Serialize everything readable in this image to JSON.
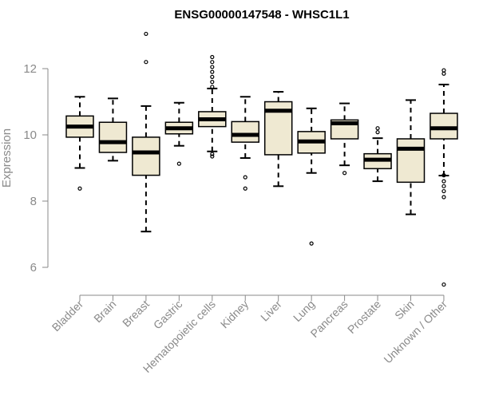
{
  "chart_data": {
    "type": "boxplot",
    "title": "ENSG00000147548 - WHSC1L1",
    "xlabel": "",
    "ylabel": "Expression",
    "ylim": [
      5.2,
      13.2
    ],
    "yticks": [
      6,
      8,
      10,
      12
    ],
    "grid": false,
    "box_color": "#efe9d2",
    "categories": [
      "Bladder",
      "Brain",
      "Breast",
      "Gastric",
      "Hematopoietic cells",
      "Kidney",
      "Liver",
      "Lung",
      "Pancreas",
      "Prostate",
      "Skin",
      "Unknown / Other"
    ],
    "boxes": [
      {
        "name": "Bladder",
        "whisker_low": 9.0,
        "q1": 9.93,
        "median": 10.25,
        "q3": 10.57,
        "whisker_high": 11.15,
        "outliers": [
          8.38
        ]
      },
      {
        "name": "Brain",
        "whisker_low": 9.22,
        "q1": 9.47,
        "median": 9.78,
        "q3": 10.38,
        "whisker_high": 11.1,
        "outliers": []
      },
      {
        "name": "Breast",
        "whisker_low": 7.08,
        "q1": 8.78,
        "median": 9.47,
        "q3": 9.93,
        "whisker_high": 10.87,
        "outliers": [
          12.2,
          13.05
        ]
      },
      {
        "name": "Gastric",
        "whisker_low": 9.67,
        "q1": 10.03,
        "median": 10.2,
        "q3": 10.38,
        "whisker_high": 10.97,
        "outliers": [
          9.13
        ]
      },
      {
        "name": "Hematopoietic cells",
        "whisker_low": 9.5,
        "q1": 10.25,
        "median": 10.47,
        "q3": 10.7,
        "whisker_high": 11.4,
        "outliers": [
          9.35,
          9.42,
          11.45,
          11.6,
          11.75,
          11.9,
          12.05,
          12.2,
          12.35
        ]
      },
      {
        "name": "Kidney",
        "whisker_low": 9.3,
        "q1": 9.78,
        "median": 10.0,
        "q3": 10.4,
        "whisker_high": 11.15,
        "outliers": [
          8.72,
          8.38
        ]
      },
      {
        "name": "Liver",
        "whisker_low": 8.45,
        "q1": 9.4,
        "median": 10.73,
        "q3": 11.0,
        "whisker_high": 11.3,
        "outliers": []
      },
      {
        "name": "Lung",
        "whisker_low": 8.85,
        "q1": 9.45,
        "median": 9.8,
        "q3": 10.1,
        "whisker_high": 10.8,
        "outliers": [
          6.72
        ]
      },
      {
        "name": "Pancreas",
        "whisker_low": 9.08,
        "q1": 9.88,
        "median": 10.35,
        "q3": 10.45,
        "whisker_high": 10.95,
        "outliers": [
          8.85
        ]
      },
      {
        "name": "Prostate",
        "whisker_low": 8.6,
        "q1": 8.98,
        "median": 9.25,
        "q3": 9.43,
        "whisker_high": 9.9,
        "outliers": [
          10.08,
          10.2
        ]
      },
      {
        "name": "Skin",
        "whisker_low": 7.6,
        "q1": 8.57,
        "median": 9.58,
        "q3": 9.88,
        "whisker_high": 11.05,
        "outliers": []
      },
      {
        "name": "Unknown / Other",
        "whisker_low": 8.77,
        "q1": 9.88,
        "median": 10.2,
        "q3": 10.65,
        "whisker_high": 11.52,
        "outliers": [
          11.85,
          11.95,
          8.78,
          8.6,
          8.45,
          8.3,
          8.12,
          5.48
        ]
      }
    ]
  }
}
